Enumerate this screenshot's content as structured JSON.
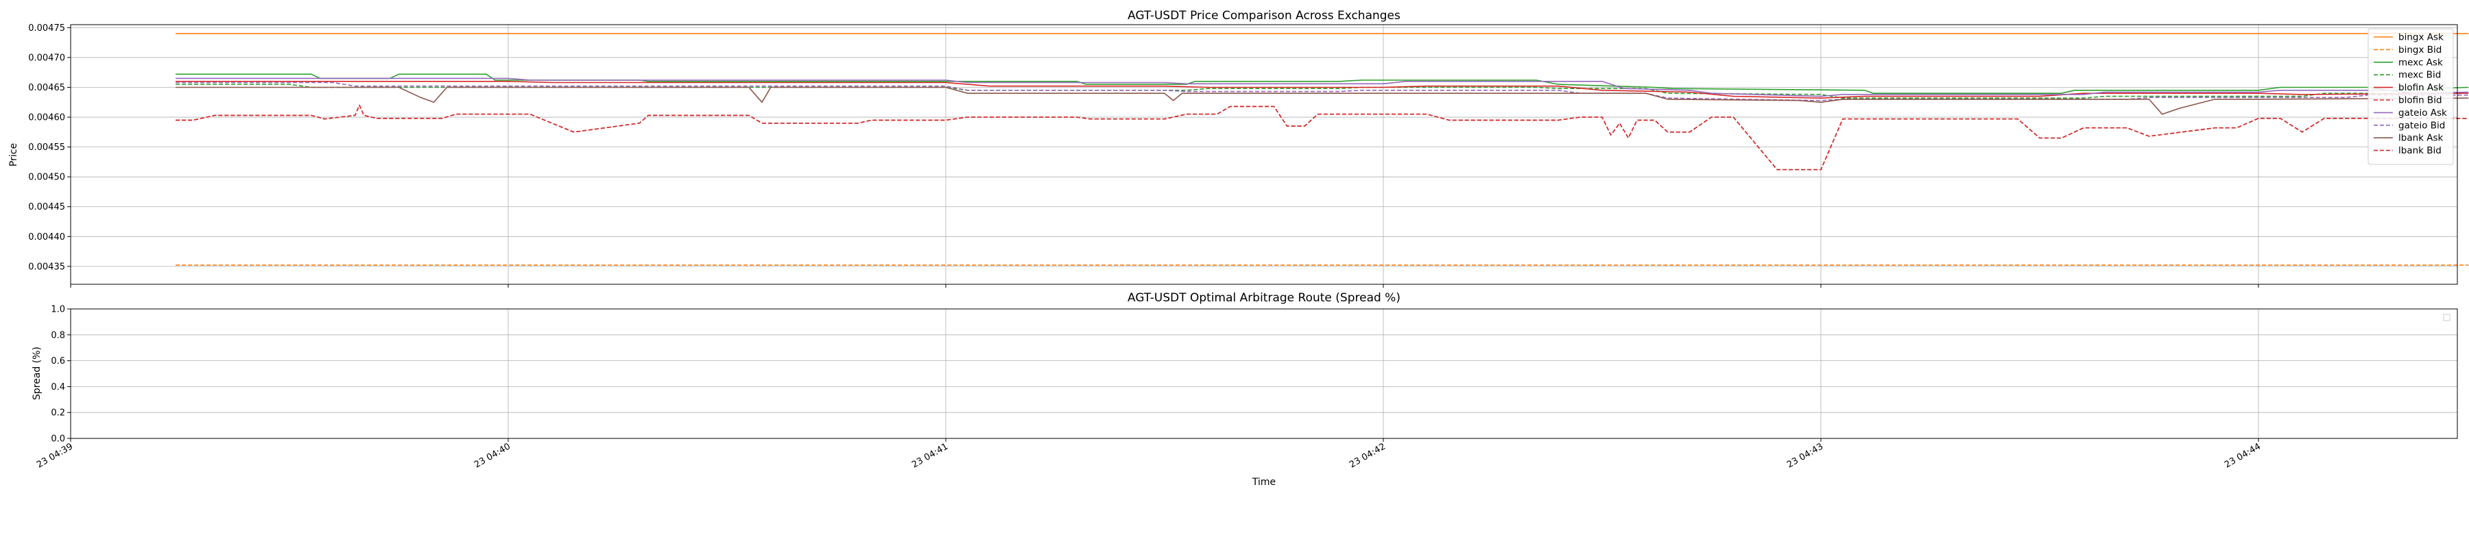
{
  "chart_data": [
    {
      "type": "line",
      "title": "AGT-USDT Price Comparison Across Exchanges",
      "xlabel": "",
      "ylabel": "Price",
      "ylim": [
        0.00432,
        0.004755
      ],
      "yticks": [
        "0.00435",
        "0.00440",
        "0.00445",
        "0.00450",
        "0.00455",
        "0.00460",
        "0.00465",
        "0.00470",
        "0.00475"
      ],
      "xlim_minutes": [
        0,
        5.55
      ],
      "xticks": [
        "23 04:39",
        "23 04:40",
        "23 04:41",
        "23 04:42",
        "23 04:43",
        "23 04:44"
      ],
      "grid": true,
      "legend_position": "right",
      "series": [
        {
          "name": "bingx Ask",
          "color": "#ff7f0e",
          "dash": "solid",
          "x": [
            0.24,
            5.48
          ],
          "y": [
            0.00474,
            0.00474
          ]
        },
        {
          "name": "bingx Bid",
          "color": "#ff7f0e",
          "dash": "dashed",
          "x": [
            0.24,
            5.48
          ],
          "y": [
            0.004352,
            0.004352
          ]
        },
        {
          "name": "mexc Ask",
          "color": "#2ca02c",
          "dash": "solid",
          "x": [
            0.24,
            0.55,
            0.57,
            0.73,
            0.75,
            0.95,
            0.97,
            1.3,
            1.32,
            2.3,
            2.32,
            2.55,
            2.57,
            2.9,
            2.95,
            3.35,
            3.4,
            3.62,
            3.66,
            4.1,
            4.12,
            4.55,
            4.58,
            5.0,
            5.05,
            5.25,
            5.3,
            5.48
          ],
          "y": [
            0.004672,
            0.004672,
            0.004665,
            0.004665,
            0.004672,
            0.004672,
            0.004662,
            0.004662,
            0.00466,
            0.00466,
            0.004655,
            0.004655,
            0.00466,
            0.00466,
            0.004662,
            0.004662,
            0.004655,
            0.00465,
            0.004648,
            0.004645,
            0.00464,
            0.00464,
            0.004645,
            0.004645,
            0.00465,
            0.00465,
            0.004645,
            0.00465
          ]
        },
        {
          "name": "mexc Bid",
          "color": "#2ca02c",
          "dash": "dashed",
          "x": [
            0.24,
            0.5,
            0.55,
            2.0,
            2.05,
            2.55,
            2.6,
            2.9,
            2.95,
            3.35,
            3.4,
            3.6,
            3.65,
            4.0,
            4.05,
            4.6,
            4.65,
            5.1,
            5.15,
            5.48
          ],
          "y": [
            0.004655,
            0.004655,
            0.00465,
            0.00465,
            0.004645,
            0.004645,
            0.004648,
            0.004648,
            0.00465,
            0.00465,
            0.004648,
            0.004648,
            0.00464,
            0.004638,
            0.004632,
            0.004632,
            0.004635,
            0.004635,
            0.00464,
            0.00464
          ]
        },
        {
          "name": "blofin Ask",
          "color": "#d62728",
          "dash": "solid",
          "x": [
            0.24,
            1.0,
            1.1,
            2.0,
            2.1,
            2.5,
            2.6,
            3.0,
            3.1,
            3.4,
            3.5,
            3.7,
            3.8,
            4.0,
            4.1,
            4.5,
            4.6,
            5.0,
            5.1,
            5.48
          ],
          "y": [
            0.00466,
            0.00466,
            0.004658,
            0.004658,
            0.004652,
            0.004652,
            0.00465,
            0.00465,
            0.004652,
            0.004652,
            0.004645,
            0.004642,
            0.004635,
            0.004632,
            0.004635,
            0.004635,
            0.00464,
            0.00464,
            0.004638,
            0.00464
          ]
        },
        {
          "name": "blofin Bid",
          "color": "#d62728",
          "dash": "dashed",
          "x": [
            0.24,
            0.28,
            0.33,
            0.55,
            0.58,
            0.65,
            0.66,
            0.67,
            0.7,
            0.85,
            0.88,
            1.05,
            1.1,
            1.15,
            1.3,
            1.32,
            1.55,
            1.58,
            1.8,
            1.83,
            2.0,
            2.05,
            2.3,
            2.33,
            2.5,
            2.55,
            2.62,
            2.65,
            2.75,
            2.78,
            2.82,
            2.85,
            3.1,
            3.15,
            3.4,
            3.45,
            3.5,
            3.52,
            3.54,
            3.56,
            3.58,
            3.62,
            3.65,
            3.7,
            3.75,
            3.8,
            3.9,
            4.0,
            4.05,
            4.45,
            4.5,
            4.55,
            4.6,
            4.7,
            4.75,
            4.9,
            4.95,
            5.0,
            5.05,
            5.1,
            5.15,
            5.48
          ],
          "y": [
            0.004595,
            0.004595,
            0.004603,
            0.004603,
            0.004597,
            0.004603,
            0.00462,
            0.004603,
            0.004598,
            0.004598,
            0.004605,
            0.004605,
            0.00459,
            0.004575,
            0.00459,
            0.004603,
            0.004603,
            0.00459,
            0.00459,
            0.004595,
            0.004595,
            0.0046,
            0.0046,
            0.004597,
            0.004597,
            0.004605,
            0.004605,
            0.004618,
            0.004618,
            0.004585,
            0.004585,
            0.004605,
            0.004605,
            0.004595,
            0.004595,
            0.0046,
            0.0046,
            0.00457,
            0.00459,
            0.004565,
            0.004595,
            0.004595,
            0.004575,
            0.004575,
            0.0046,
            0.0046,
            0.004512,
            0.004512,
            0.004597,
            0.004597,
            0.004565,
            0.004565,
            0.004582,
            0.004582,
            0.004568,
            0.004582,
            0.004582,
            0.004598,
            0.004598,
            0.004575,
            0.004598,
            0.004598
          ]
        },
        {
          "name": "gateio Ask",
          "color": "#9467bd",
          "dash": "solid",
          "x": [
            0.24,
            1.0,
            1.05,
            2.0,
            2.05,
            2.5,
            2.55,
            3.0,
            3.05,
            3.5,
            3.55,
            3.7,
            3.75,
            4.0,
            4.05,
            4.6,
            4.65,
            5.0,
            5.05,
            5.3,
            5.35,
            5.48
          ],
          "y": [
            0.004665,
            0.004665,
            0.004662,
            0.004662,
            0.004658,
            0.004658,
            0.004656,
            0.004656,
            0.00466,
            0.00466,
            0.004648,
            0.004645,
            0.00464,
            0.004635,
            0.004638,
            0.004638,
            0.004642,
            0.004642,
            0.004645,
            0.004645,
            0.00464,
            0.004642
          ]
        },
        {
          "name": "gateio Bid",
          "color": "#9467bd",
          "dash": "dashed",
          "x": [
            0.24,
            0.6,
            0.65,
            2.0,
            2.05,
            2.5,
            2.55,
            2.9,
            2.95,
            3.4,
            3.45,
            3.6,
            3.65,
            4.0,
            4.05,
            4.7,
            4.75,
            5.2,
            5.25,
            5.48
          ],
          "y": [
            0.004658,
            0.004658,
            0.004652,
            0.004652,
            0.004645,
            0.004645,
            0.004643,
            0.004643,
            0.004645,
            0.004645,
            0.00464,
            0.00464,
            0.004632,
            0.004628,
            0.00463,
            0.00463,
            0.004633,
            0.004633,
            0.004637,
            0.004637
          ]
        },
        {
          "name": "lbank Ask",
          "color": "#8c564b",
          "dash": "solid",
          "x": [
            0.24,
            0.75,
            0.8,
            0.83,
            0.86,
            1.55,
            1.58,
            1.6,
            2.0,
            2.05,
            2.5,
            2.52,
            2.54,
            2.58,
            3.6,
            3.65,
            3.95,
            4.0,
            4.05,
            4.75,
            4.78,
            4.82,
            4.9,
            5.0,
            5.48
          ],
          "y": [
            0.00465,
            0.00465,
            0.004633,
            0.004625,
            0.00465,
            0.00465,
            0.004625,
            0.00465,
            0.00465,
            0.00464,
            0.00464,
            0.004628,
            0.00464,
            0.00464,
            0.00464,
            0.00463,
            0.004628,
            0.004625,
            0.00463,
            0.00463,
            0.004605,
            0.004615,
            0.00463,
            0.00463,
            0.004632
          ]
        },
        {
          "name": "lbank Bid",
          "color": "#d62728",
          "dash": "dashed",
          "x": [
            0.24,
            0.28,
            0.33,
            0.55,
            0.58,
            0.65,
            0.66,
            0.67,
            0.7,
            0.85,
            0.88,
            1.05,
            1.1,
            1.15,
            1.3,
            1.32,
            1.55,
            1.58,
            1.8,
            1.83,
            2.0,
            2.05,
            2.3,
            2.33,
            2.5,
            2.55,
            2.62,
            2.65,
            2.75,
            2.78,
            2.82,
            2.85,
            3.1,
            3.15,
            3.4,
            3.45,
            3.5,
            3.52,
            3.54,
            3.56,
            3.58,
            3.62,
            3.65,
            3.7,
            3.75,
            3.8,
            3.9,
            4.0,
            4.05,
            4.45,
            4.5,
            4.55,
            4.6,
            4.7,
            4.75,
            4.9,
            4.95,
            5.0,
            5.05,
            5.1,
            5.15,
            5.48
          ],
          "y": [
            0.004595,
            0.004595,
            0.004603,
            0.004603,
            0.004597,
            0.004603,
            0.00462,
            0.004603,
            0.004598,
            0.004598,
            0.004605,
            0.004605,
            0.00459,
            0.004575,
            0.00459,
            0.004603,
            0.004603,
            0.00459,
            0.00459,
            0.004595,
            0.004595,
            0.0046,
            0.0046,
            0.004597,
            0.004597,
            0.004605,
            0.004605,
            0.004618,
            0.004618,
            0.004585,
            0.004585,
            0.004605,
            0.004605,
            0.004595,
            0.004595,
            0.0046,
            0.0046,
            0.00457,
            0.00459,
            0.004565,
            0.004595,
            0.004595,
            0.004575,
            0.004575,
            0.0046,
            0.0046,
            0.004512,
            0.004512,
            0.004597,
            0.004597,
            0.004565,
            0.004565,
            0.004582,
            0.004582,
            0.004568,
            0.004582,
            0.004582,
            0.004598,
            0.004598,
            0.004575,
            0.004598,
            0.004598
          ]
        }
      ]
    },
    {
      "type": "line",
      "title": "AGT-USDT Optimal Arbitrage Route (Spread %)",
      "xlabel": "Time",
      "ylabel": "Spread (%)",
      "ylim": [
        0.0,
        1.0
      ],
      "yticks": [
        "0.0",
        "0.2",
        "0.4",
        "0.6",
        "0.8",
        "1.0"
      ],
      "xticks": [
        "23 04:39",
        "23 04:40",
        "23 04:41",
        "23 04:42",
        "23 04:43",
        "23 04:44"
      ],
      "grid": true,
      "legend_position": "upper right",
      "series": []
    }
  ]
}
